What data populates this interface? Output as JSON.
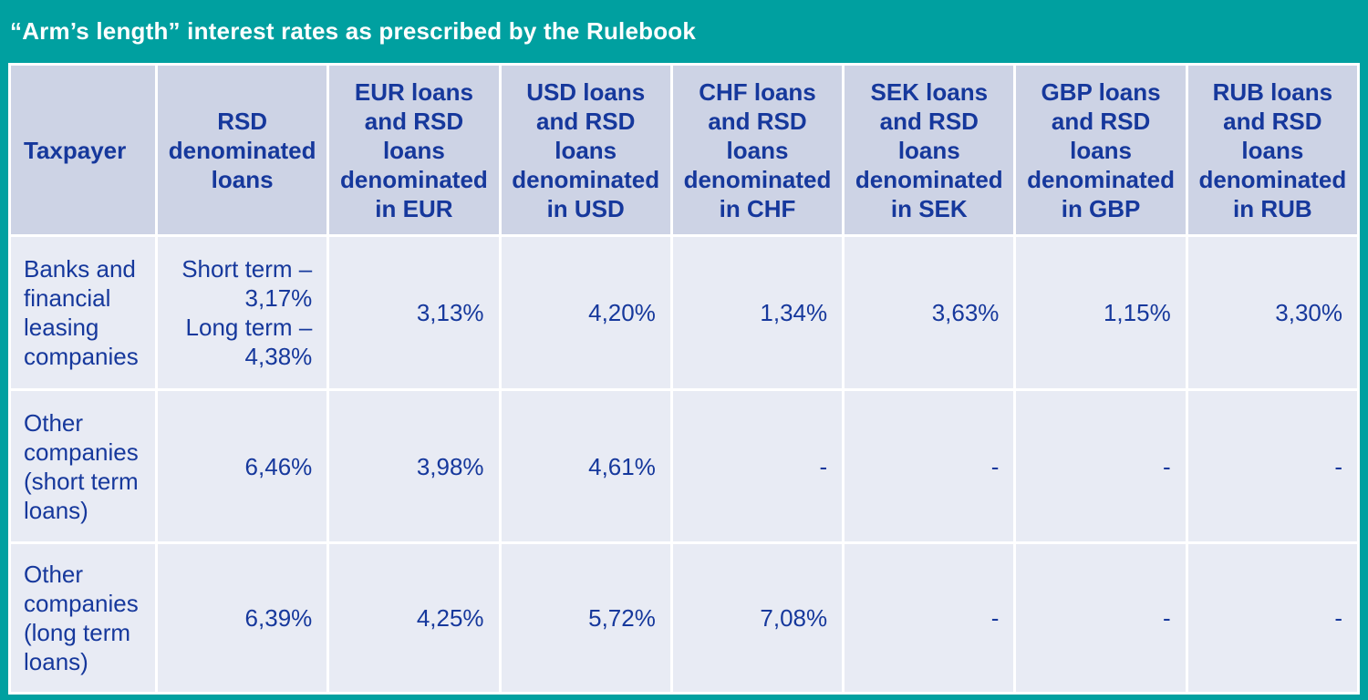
{
  "title": "“Arm’s length” interest rates as prescribed by the Rulebook",
  "colors": {
    "frame_teal": "#00A0A0",
    "header_cell_bg": "#CDD3E5",
    "data_cell_bg": "#E8EBF4",
    "text_navy": "#16389C",
    "title_text": "#FFFFFF",
    "grid_gap": "#FFFFFF"
  },
  "table": {
    "columns": [
      {
        "key": "taxpayer",
        "label": "Taxpayer"
      },
      {
        "key": "rsd",
        "label": "RSD\ndenominated\nloans"
      },
      {
        "key": "eur",
        "label": "EUR loans\nand RSD\nloans\ndenominated\nin EUR"
      },
      {
        "key": "usd",
        "label": "USD loans\nand RSD\nloans\ndenominated\nin USD"
      },
      {
        "key": "chf",
        "label": "CHF loans\nand RSD\nloans\ndenominated\nin CHF"
      },
      {
        "key": "sek",
        "label": "SEK loans\nand RSD\nloans\ndenominated\nin SEK"
      },
      {
        "key": "gbp",
        "label": "GBP loans\nand RSD loans\ndenominated\nin GBP"
      },
      {
        "key": "rub",
        "label": "RUB loans\nand RSD\nloans\ndenominated\nin RUB"
      }
    ],
    "rows": [
      {
        "taxpayer": "Banks and\nfinancial\nleasing\ncompanies",
        "rsd": "Short term –\n3,17%\nLong term –\n4,38%",
        "eur": "3,13%",
        "usd": "4,20%",
        "chf": "1,34%",
        "sek": "3,63%",
        "gbp": "1,15%",
        "rub": "3,30%"
      },
      {
        "taxpayer": "Other\ncompanies\n(short term\nloans)",
        "rsd": "6,46%",
        "eur": "3,98%",
        "usd": "4,61%",
        "chf": "-",
        "sek": "-",
        "gbp": "-",
        "rub": "-"
      },
      {
        "taxpayer": "Other\ncompanies\n(long term\nloans)",
        "rsd": "6,39%",
        "eur": "4,25%",
        "usd": "5,72%",
        "chf": "7,08%",
        "sek": "-",
        "gbp": "-",
        "rub": "-"
      }
    ]
  }
}
